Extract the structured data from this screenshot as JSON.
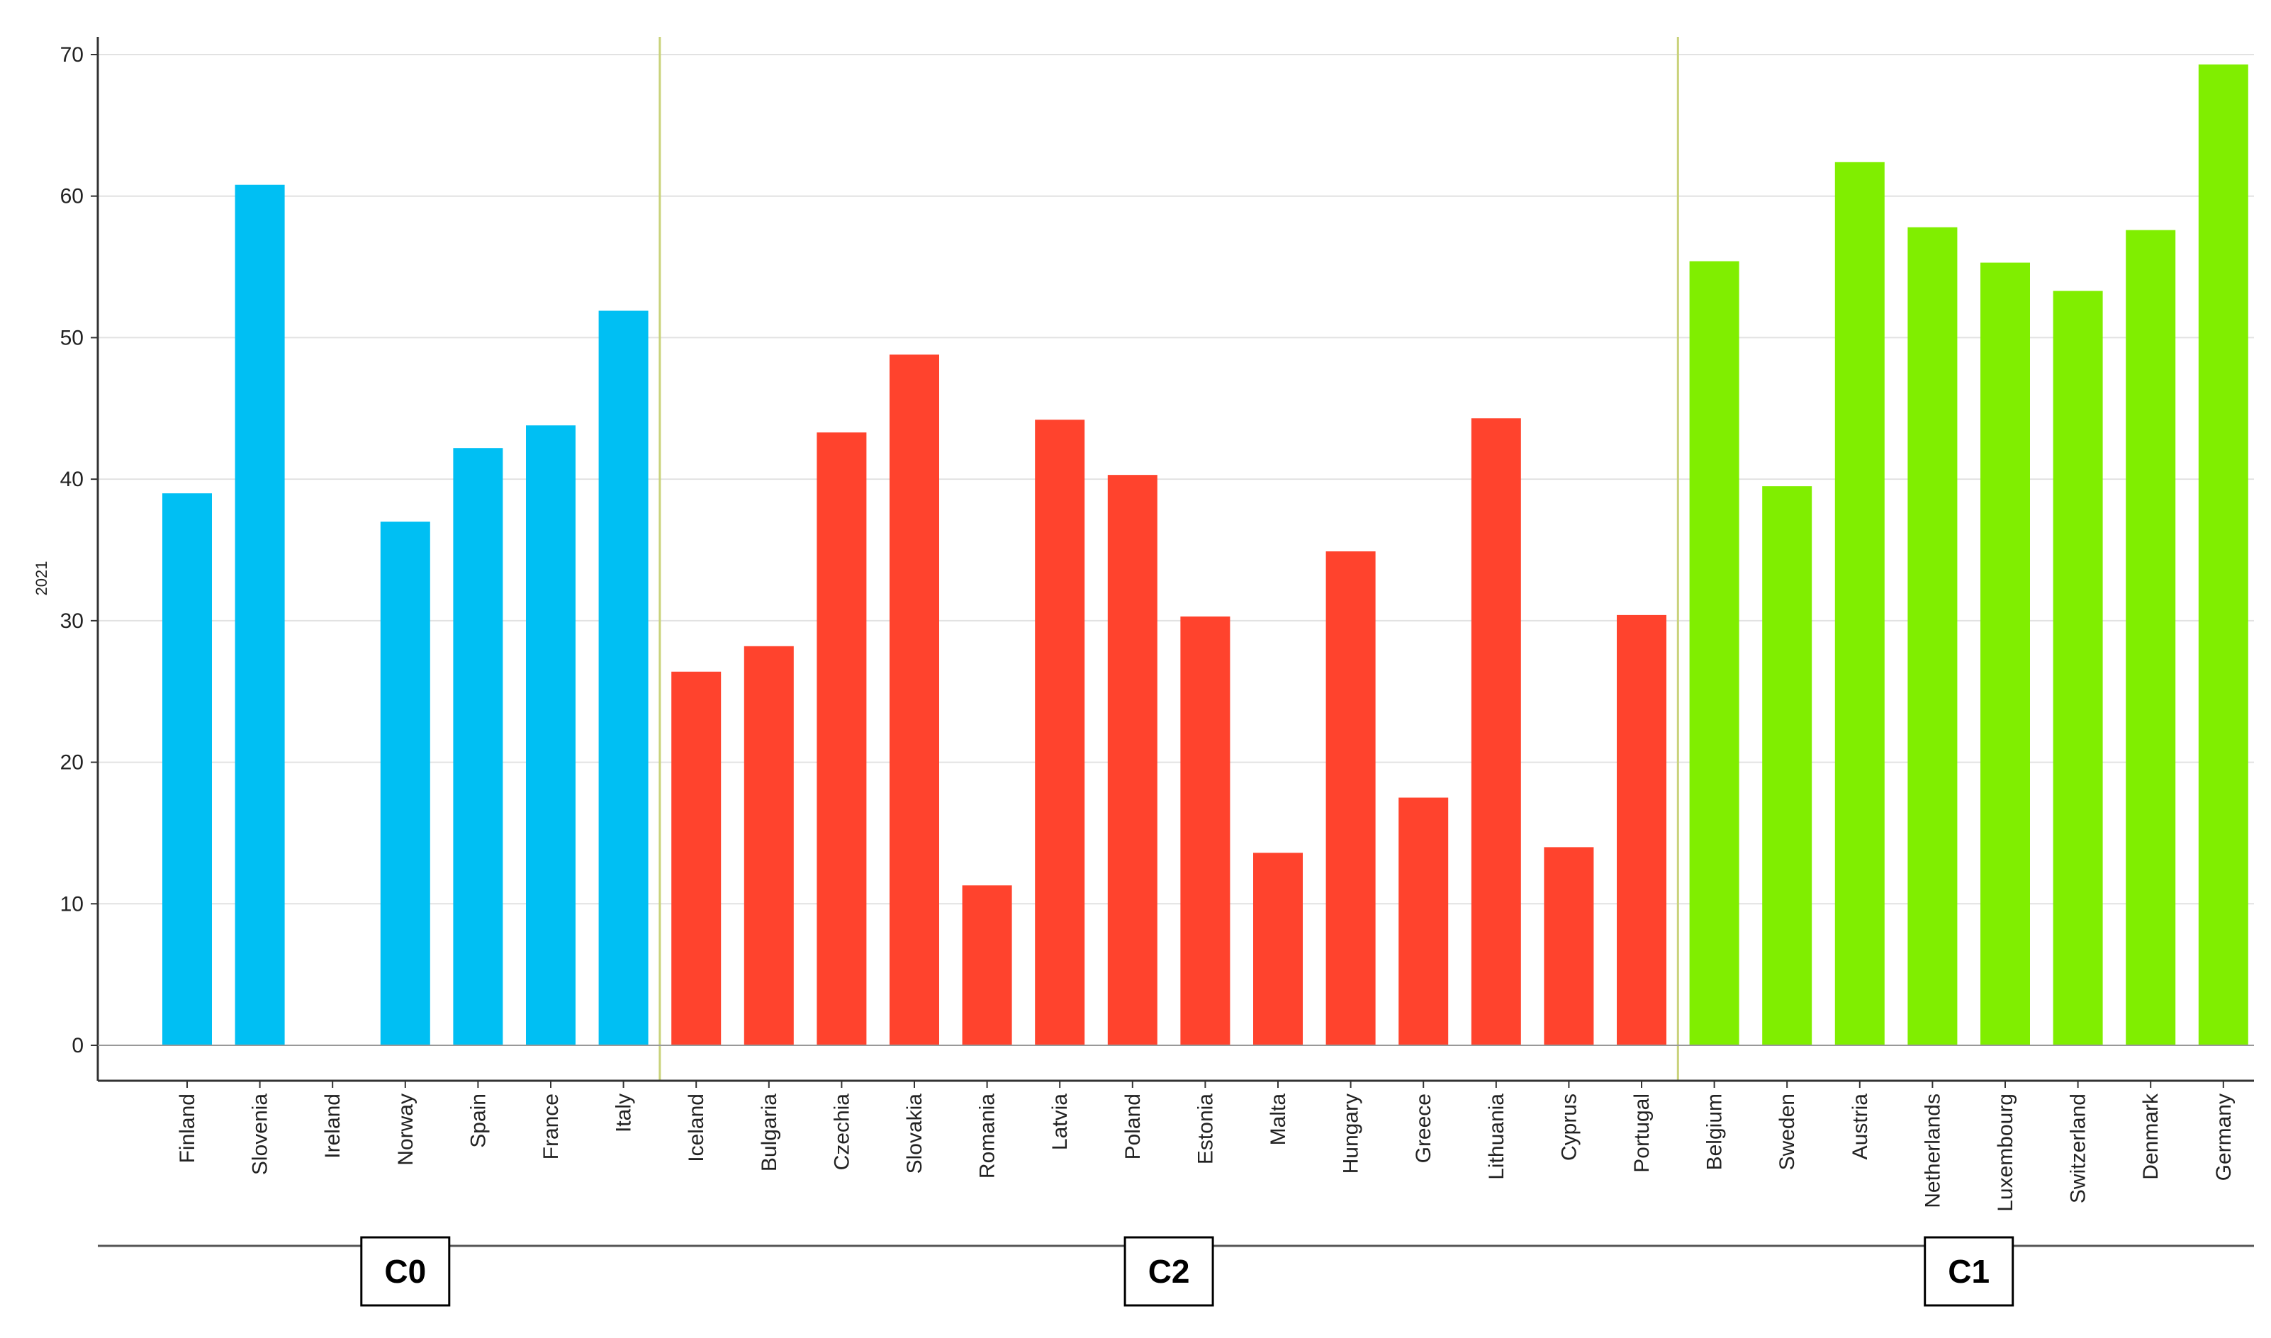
{
  "chart_data": {
    "type": "bar",
    "title": "",
    "xlabel": "",
    "ylabel": "2021",
    "ylim": [
      0,
      70
    ],
    "yticks": [
      0,
      10,
      20,
      30,
      40,
      50,
      60,
      70
    ],
    "grid": true,
    "legend": "none",
    "categories": [
      "Finland",
      "Slovenia",
      "Ireland",
      "Norway",
      "Spain",
      "France",
      "Italy",
      "Iceland",
      "Bulgaria",
      "Czechia",
      "Slovakia",
      "Romania",
      "Latvia",
      "Poland",
      "Estonia",
      "Malta",
      "Hungary",
      "Greece",
      "Lithuania",
      "Cyprus",
      "Portugal",
      "Belgium",
      "Sweden",
      "Austria",
      "Netherlands",
      "Luxembourg",
      "Switzerland",
      "Denmark",
      "Germany"
    ],
    "values": [
      39.0,
      60.8,
      null,
      37.0,
      42.2,
      43.8,
      51.9,
      26.4,
      28.2,
      43.3,
      48.8,
      11.3,
      44.2,
      40.3,
      30.3,
      13.6,
      34.9,
      17.5,
      44.3,
      14.0,
      30.4,
      55.4,
      39.5,
      62.4,
      57.8,
      55.3,
      53.3,
      57.6,
      69.3
    ],
    "groups": [
      {
        "label": "C0",
        "color": "#00bff3",
        "start": 0,
        "end": 6
      },
      {
        "label": "C2",
        "color": "#ff432d",
        "start": 7,
        "end": 20
      },
      {
        "label": "C1",
        "color": "#80ee00",
        "start": 21,
        "end": 28
      }
    ]
  }
}
